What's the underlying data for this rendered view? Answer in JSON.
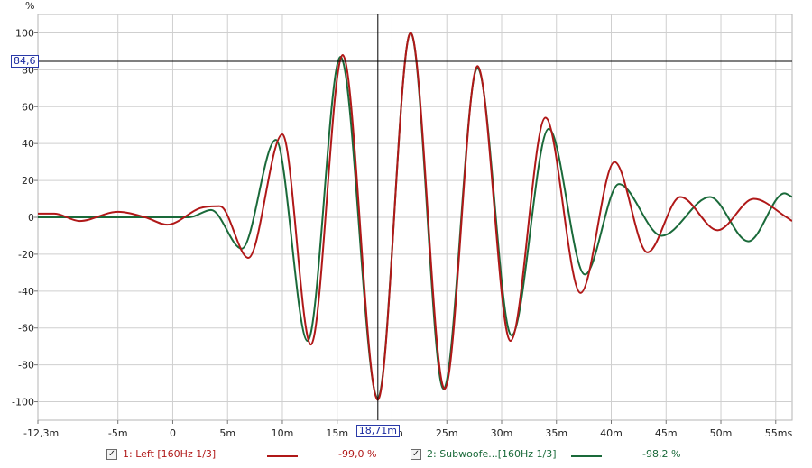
{
  "chart_data": {
    "type": "line",
    "ylabel": "%",
    "xlabel": "",
    "xlim": [
      -12.3,
      56.5
    ],
    "ylim": [
      -110,
      110
    ],
    "x_ticks": [
      {
        "v": -12.3,
        "label": "-12,3m"
      },
      {
        "v": -5,
        "label": "-5m"
      },
      {
        "v": 0,
        "label": "0"
      },
      {
        "v": 5,
        "label": "5m"
      },
      {
        "v": 10,
        "label": "10m"
      },
      {
        "v": 15,
        "label": "15m"
      },
      {
        "v": 20,
        "label": "20m"
      },
      {
        "v": 25,
        "label": "25m"
      },
      {
        "v": 30,
        "label": "30m"
      },
      {
        "v": 35,
        "label": "35m"
      },
      {
        "v": 40,
        "label": "40m"
      },
      {
        "v": 45,
        "label": "45m"
      },
      {
        "v": 50,
        "label": "50m"
      },
      {
        "v": 55,
        "label": "55ms"
      }
    ],
    "y_ticks": [
      {
        "v": 100,
        "label": "100"
      },
      {
        "v": 80,
        "label": "80"
      },
      {
        "v": 60,
        "label": "60"
      },
      {
        "v": 40,
        "label": "40"
      },
      {
        "v": 20,
        "label": "20"
      },
      {
        "v": 0,
        "label": "0"
      },
      {
        "v": -20,
        "label": "-20"
      },
      {
        "v": -40,
        "label": "-40"
      },
      {
        "v": -60,
        "label": "-60"
      },
      {
        "v": -80,
        "label": "-80"
      },
      {
        "v": -100,
        "label": "-100"
      }
    ],
    "grid": true,
    "cursor": {
      "x": 18.71,
      "y": 84.6,
      "x_label": "18,71m",
      "y_label": "84,6"
    },
    "series": [
      {
        "name": "1: Left [160Hz 1/3]",
        "color": "#b01818",
        "value_label": "-99,0 %",
        "x": [
          -12.3,
          -10.8,
          -8.5,
          -5.0,
          -2.5,
          -0.5,
          2.5,
          4.0,
          4.6,
          6.9,
          10.0,
          12.6,
          15.5,
          18.7,
          21.7,
          24.8,
          27.8,
          30.8,
          34.0,
          37.2,
          40.3,
          43.3,
          46.3,
          49.7,
          53.0,
          56.0,
          56.5
        ],
        "y": [
          2,
          2,
          -2,
          3,
          0,
          -4,
          5,
          6,
          5,
          -22,
          45,
          -69,
          88,
          -99,
          100,
          -93,
          82,
          -67,
          54,
          -41,
          30,
          -19,
          11,
          -7,
          10,
          0,
          -2
        ]
      },
      {
        "name": "2: Subwoofe...[160Hz 1/3]",
        "color": "#1a6a3a",
        "value_label": "-98,2 %",
        "x": [
          -12.3,
          0.0,
          1.5,
          3.5,
          6.3,
          9.4,
          12.3,
          15.3,
          18.7,
          21.7,
          24.7,
          27.8,
          30.9,
          34.3,
          37.6,
          40.7,
          44.6,
          49.0,
          52.5,
          55.8,
          56.5
        ],
        "y": [
          0,
          0,
          0,
          4,
          -17,
          42,
          -67,
          87,
          -98,
          100,
          -93,
          81,
          -64,
          48,
          -31,
          18,
          -10,
          11,
          -13,
          13,
          11
        ]
      }
    ]
  },
  "legend": [
    {
      "checked": "✓",
      "label": "1: Left [160Hz 1/3]",
      "value": "-99,0 %"
    },
    {
      "checked": "✓",
      "label": "2: Subwoofe...[160Hz 1/3]",
      "value": "-98,2 %"
    }
  ]
}
